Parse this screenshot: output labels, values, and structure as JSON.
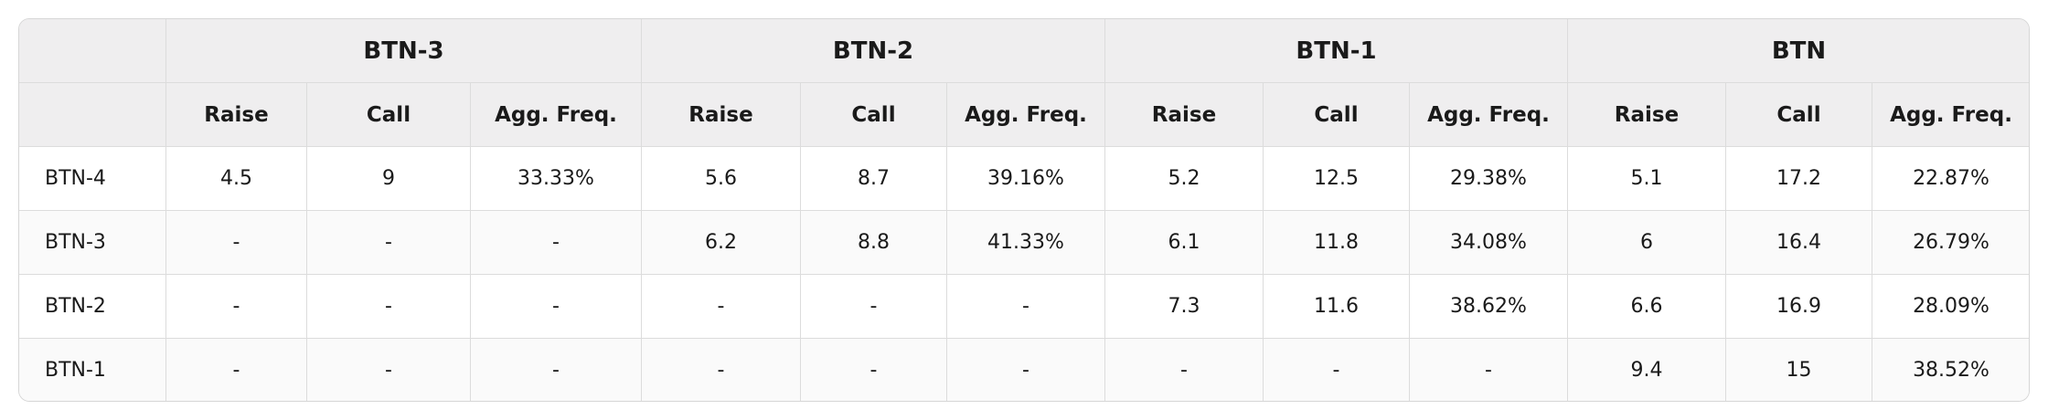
{
  "table": {
    "groups": [
      "BTN-3",
      "BTN-2",
      "BTN-1",
      "BTN"
    ],
    "subheaders": [
      "Raise",
      "Call",
      "Agg. Freq."
    ],
    "rows": [
      {
        "label": "BTN-4",
        "cells": [
          "4.5",
          "9",
          "33.33%",
          "5.6",
          "8.7",
          "39.16%",
          "5.2",
          "12.5",
          "29.38%",
          "5.1",
          "17.2",
          "22.87%"
        ]
      },
      {
        "label": "BTN-3",
        "cells": [
          "-",
          "-",
          "-",
          "6.2",
          "8.8",
          "41.33%",
          "6.1",
          "11.8",
          "34.08%",
          "6",
          "16.4",
          "26.79%"
        ]
      },
      {
        "label": "BTN-2",
        "cells": [
          "-",
          "-",
          "-",
          "-",
          "-",
          "-",
          "7.3",
          "11.6",
          "38.62%",
          "6.6",
          "16.9",
          "28.09%"
        ]
      },
      {
        "label": "BTN-1",
        "cells": [
          "-",
          "-",
          "-",
          "-",
          "-",
          "-",
          "-",
          "-",
          "-",
          "9.4",
          "15",
          "38.52%"
        ]
      }
    ]
  }
}
